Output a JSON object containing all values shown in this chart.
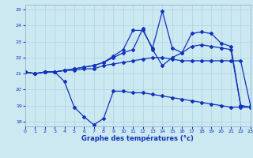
{
  "xlabel": "Graphe des températures (°c)",
  "xlim": [
    0,
    23
  ],
  "ylim": [
    17.7,
    25.3
  ],
  "yticks": [
    18,
    19,
    20,
    21,
    22,
    23,
    24,
    25
  ],
  "xticks": [
    0,
    1,
    2,
    3,
    4,
    5,
    6,
    7,
    8,
    9,
    10,
    11,
    12,
    13,
    14,
    15,
    16,
    17,
    18,
    19,
    20,
    21,
    22,
    23
  ],
  "bg_color": "#cce8f0",
  "grid_color": "#aad4e0",
  "line_color": "#1133bb",
  "series": [
    {
      "x": [
        0,
        1,
        2,
        3,
        4,
        5,
        6,
        7,
        8,
        9,
        10,
        11,
        12,
        13,
        14,
        15,
        16,
        17,
        18,
        19,
        20,
        21,
        22,
        23
      ],
      "y": [
        21.1,
        21.0,
        21.1,
        21.1,
        20.5,
        18.9,
        18.3,
        17.8,
        18.2,
        19.9,
        19.9,
        19.8,
        19.8,
        19.7,
        19.6,
        19.5,
        19.4,
        19.3,
        19.2,
        19.1,
        19.0,
        18.9,
        18.9,
        18.9
      ]
    },
    {
      "x": [
        0,
        1,
        2,
        3,
        4,
        5,
        6,
        7,
        8,
        9,
        10,
        11,
        12,
        13,
        14,
        15,
        16,
        17,
        18,
        19,
        20,
        21,
        22,
        23
      ],
      "y": [
        21.1,
        21.0,
        21.1,
        21.1,
        21.2,
        21.2,
        21.3,
        21.3,
        21.5,
        21.6,
        21.7,
        21.8,
        21.9,
        22.0,
        22.0,
        21.9,
        21.8,
        21.8,
        21.8,
        21.8,
        21.8,
        21.8,
        21.8,
        19.0
      ]
    },
    {
      "x": [
        0,
        1,
        2,
        3,
        4,
        5,
        6,
        7,
        8,
        9,
        10,
        11,
        12,
        13,
        14,
        15,
        16,
        17,
        18,
        19,
        20,
        21,
        22,
        23
      ],
      "y": [
        21.1,
        21.0,
        21.1,
        21.1,
        21.2,
        21.3,
        21.4,
        21.5,
        21.7,
        22.0,
        22.3,
        22.5,
        23.8,
        22.5,
        21.5,
        22.0,
        22.3,
        22.7,
        22.8,
        22.7,
        22.6,
        22.5,
        19.0,
        18.9
      ]
    },
    {
      "x": [
        0,
        1,
        2,
        3,
        4,
        5,
        6,
        7,
        8,
        9,
        10,
        11,
        12,
        13,
        14,
        15,
        16,
        17,
        18,
        19,
        20,
        21,
        22,
        23
      ],
      "y": [
        21.1,
        21.0,
        21.1,
        21.1,
        21.2,
        21.3,
        21.4,
        21.5,
        21.7,
        22.1,
        22.5,
        23.7,
        23.7,
        22.6,
        24.9,
        22.6,
        22.3,
        23.5,
        23.6,
        23.5,
        22.9,
        22.7,
        19.0,
        18.9
      ]
    }
  ],
  "marker": "D",
  "markersize": 2.0,
  "linewidth": 0.9
}
